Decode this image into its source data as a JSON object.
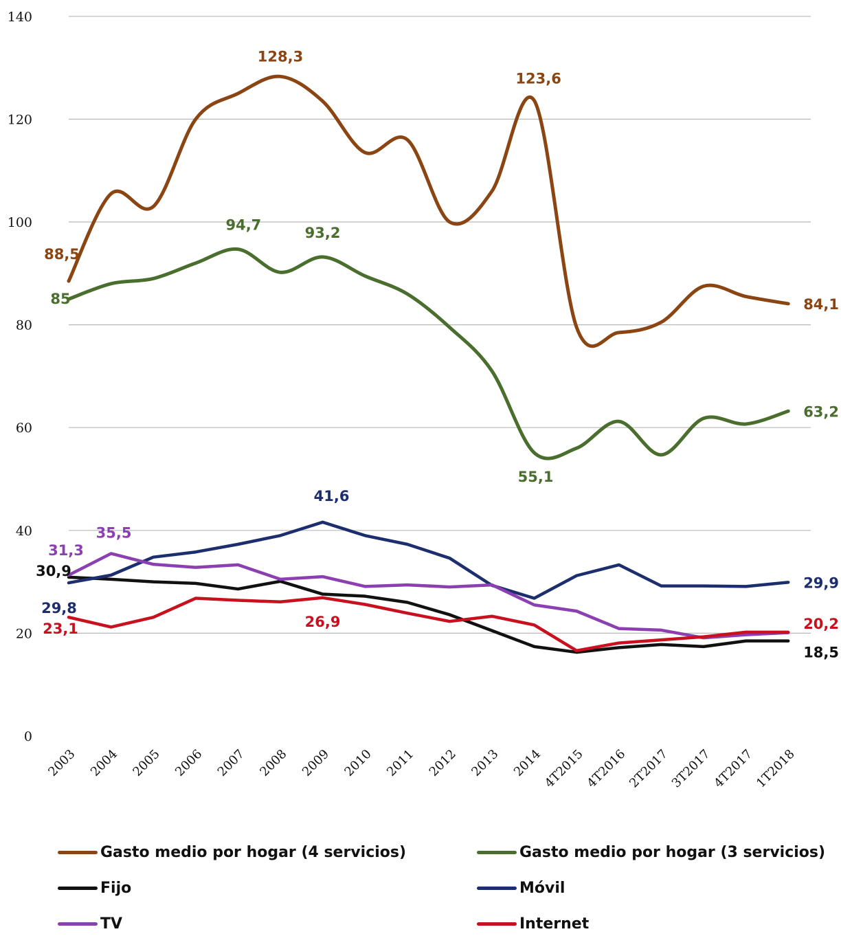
{
  "chart_data": {
    "type": "line",
    "title": "",
    "xlabel": "",
    "ylabel": "",
    "ylim": [
      0,
      140
    ],
    "y_ticks": [
      "0",
      "20",
      "40",
      "60",
      "80",
      "100",
      "120",
      "140"
    ],
    "grid": "horizontal",
    "legend_position": "bottom",
    "categories": [
      "2003",
      "2004",
      "2005",
      "2006",
      "2007",
      "2008",
      "2009",
      "2010",
      "2011",
      "2012",
      "2013",
      "2014",
      "4T2015",
      "4T2016",
      "2T2017",
      "3T2017",
      "4T2017",
      "1T2018"
    ],
    "series": [
      {
        "name": "Gasto medio por hogar (4 servicios)",
        "color": "#8B4513",
        "smooth": true,
        "values": [
          88.5,
          105.5,
          103,
          120,
          125,
          128.3,
          123.5,
          113.5,
          116,
          100,
          106,
          123.6,
          79.5,
          78.5,
          80.5,
          87.5,
          85.5,
          84.1
        ],
        "labels": [
          {
            "index": 0,
            "text": "88,5"
          },
          {
            "index": 5,
            "text": "128,3"
          },
          {
            "index": 11,
            "text": "123,6"
          },
          {
            "index": 17,
            "text": "84,1"
          }
        ]
      },
      {
        "name": "Gasto medio por hogar (3 servicios)",
        "color": "#4A6E2E",
        "smooth": true,
        "values": [
          85,
          88,
          89,
          92,
          94.7,
          90.2,
          93.2,
          89.5,
          86,
          79.5,
          71,
          55.1,
          56,
          61.2,
          54.7,
          61.8,
          60.7,
          63.2
        ],
        "labels": [
          {
            "index": 0,
            "text": "85"
          },
          {
            "index": 4,
            "text": "94,7"
          },
          {
            "index": 6,
            "text": "93,2"
          },
          {
            "index": 11,
            "text": "55,1"
          },
          {
            "index": 17,
            "text": "63,2"
          }
        ]
      },
      {
        "name": "Fijo",
        "color": "#111111",
        "smooth": false,
        "values": [
          30.9,
          30.5,
          30,
          29.7,
          28.6,
          30.1,
          27.6,
          27.2,
          26,
          23.6,
          20.5,
          17.4,
          16.3,
          17.2,
          17.8,
          17.4,
          18.5,
          18.5
        ],
        "labels": [
          {
            "index": 0,
            "text": "30,9"
          },
          {
            "index": 17,
            "text": "18,5"
          }
        ]
      },
      {
        "name": "Móvil",
        "color": "#1C2E6E",
        "smooth": false,
        "values": [
          29.8,
          31.3,
          34.8,
          35.8,
          37.3,
          39,
          41.6,
          39,
          37.3,
          34.6,
          29.3,
          26.8,
          31.2,
          33.3,
          29.2,
          29.2,
          29.1,
          29.9
        ],
        "labels": [
          {
            "index": 0,
            "text": "29,8"
          },
          {
            "index": 6,
            "text": "41,6"
          },
          {
            "index": 17,
            "text": "29,9"
          }
        ]
      },
      {
        "name": "TV",
        "color": "#8B3FB0",
        "smooth": false,
        "values": [
          31.3,
          35.5,
          33.4,
          32.8,
          33.3,
          30.5,
          31,
          29.1,
          29.4,
          29,
          29.4,
          25.5,
          24.3,
          20.9,
          20.6,
          19.1,
          19.7,
          20.1
        ],
        "labels": [
          {
            "index": 0,
            "text": "31,3"
          },
          {
            "index": 1,
            "text": "35,5"
          }
        ]
      },
      {
        "name": "Internet",
        "color": "#C8101E",
        "smooth": false,
        "values": [
          23.1,
          21.2,
          23.1,
          26.8,
          26.4,
          26.1,
          26.9,
          25.6,
          23.9,
          22.3,
          23.3,
          21.6,
          16.6,
          18.1,
          18.7,
          19.3,
          20.2,
          20.2
        ],
        "labels": [
          {
            "index": 0,
            "text": "23,1"
          },
          {
            "index": 6,
            "text": "26,9"
          },
          {
            "index": 17,
            "text": "20,2"
          }
        ]
      }
    ]
  }
}
